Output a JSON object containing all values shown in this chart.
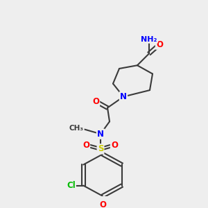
{
  "bg_color": "#eeeeee",
  "bond_color": "#3a3a3a",
  "bond_width": 1.5,
  "atom_colors": {
    "N": "#0000ff",
    "O": "#ff0000",
    "S": "#cccc00",
    "Cl": "#00bb00",
    "C": "#3a3a3a",
    "H": "#888888"
  },
  "font_size": 8.5,
  "fig_size": [
    3.0,
    3.0
  ],
  "dpi": 100
}
